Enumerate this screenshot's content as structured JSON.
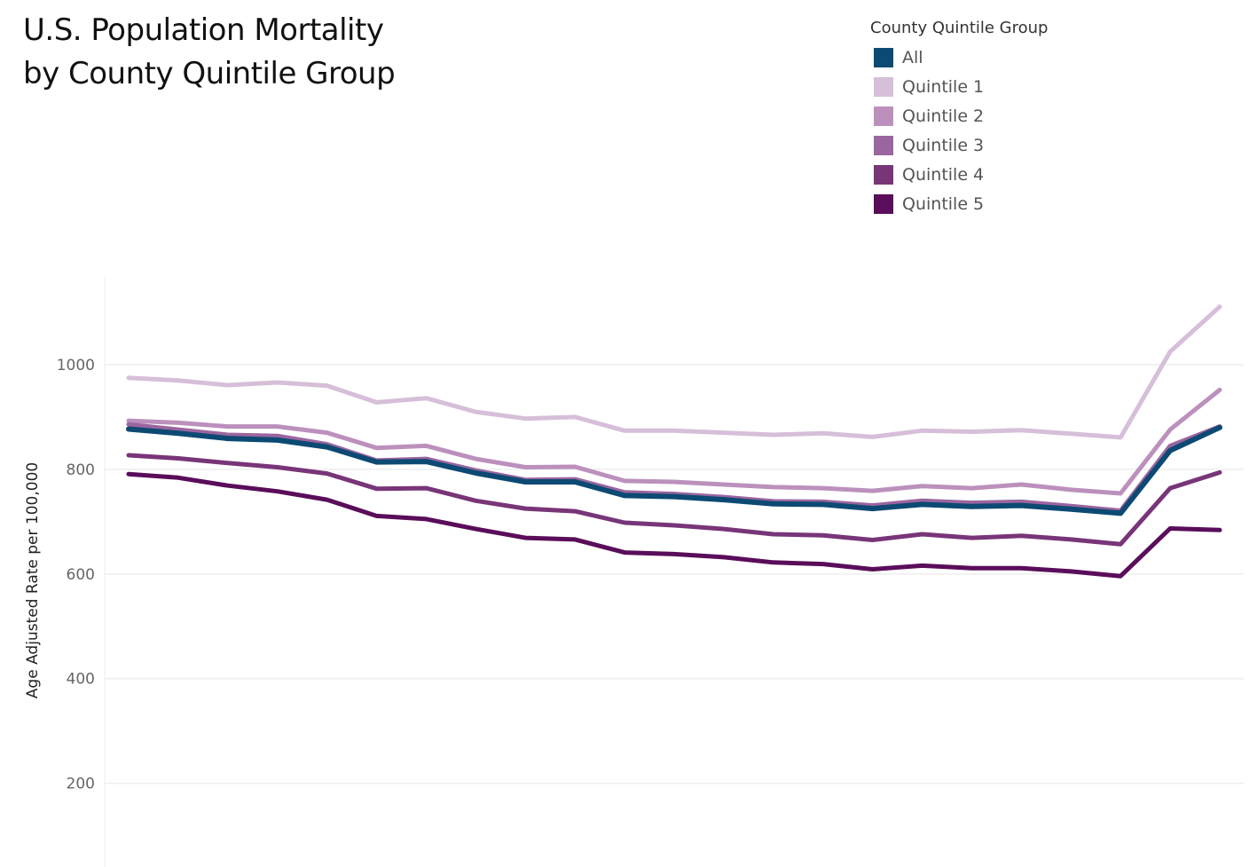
{
  "title_lines": [
    "U.S. Population Mortality",
    "by County Quintile Group"
  ],
  "chart_data": {
    "type": "line",
    "title": "U.S. Population Mortality by County Quintile Group",
    "ylabel": "Age Adjusted Rate per 100,000",
    "xlabel": "",
    "ylim": [
      80,
      1170
    ],
    "yticks": [
      200,
      400,
      600,
      800,
      1000
    ],
    "grid": true,
    "legend": {
      "title": "County Quintile Group",
      "placement": "top-right"
    },
    "x": [
      1,
      2,
      3,
      4,
      5,
      6,
      7,
      8,
      9,
      10,
      11,
      12,
      13,
      14,
      15,
      16,
      17,
      18,
      19,
      20,
      21,
      22,
      23
    ],
    "series": [
      {
        "name": "Quintile 1",
        "color": "#d6bfd9",
        "values": [
          975,
          970,
          961,
          966,
          960,
          928,
          936,
          910,
          897,
          900,
          874,
          874,
          870,
          866,
          869,
          862,
          874,
          872,
          875,
          868,
          861,
          1025,
          1111
        ]
      },
      {
        "name": "Quintile 2",
        "color": "#bc90bd",
        "values": [
          893,
          889,
          882,
          882,
          870,
          841,
          845,
          820,
          804,
          805,
          778,
          776,
          771,
          766,
          764,
          759,
          768,
          764,
          771,
          761,
          754,
          876,
          952
        ]
      },
      {
        "name": "Quintile 3",
        "color": "#9b65a0",
        "values": [
          886,
          876,
          866,
          864,
          848,
          817,
          820,
          798,
          780,
          781,
          756,
          753,
          747,
          739,
          738,
          731,
          740,
          736,
          738,
          730,
          721,
          845,
          882
        ]
      },
      {
        "name": "All",
        "color": "#0c4a73",
        "values": [
          877,
          869,
          859,
          856,
          843,
          814,
          815,
          793,
          776,
          776,
          750,
          748,
          742,
          734,
          733,
          725,
          733,
          729,
          731,
          724,
          716,
          836,
          880
        ]
      },
      {
        "name": "Quintile 4",
        "color": "#783578",
        "values": [
          827,
          821,
          812,
          804,
          792,
          763,
          764,
          740,
          725,
          720,
          698,
          693,
          686,
          676,
          674,
          665,
          676,
          669,
          673,
          666,
          657,
          764,
          794
        ]
      },
      {
        "name": "Quintile 5",
        "color": "#5a0d5a",
        "values": [
          791,
          784,
          769,
          758,
          742,
          711,
          705,
          686,
          669,
          666,
          641,
          638,
          632,
          622,
          619,
          609,
          616,
          611,
          611,
          605,
          596,
          687,
          684
        ]
      }
    ],
    "legend_order": [
      "All",
      "Quintile 1",
      "Quintile 2",
      "Quintile 3",
      "Quintile 4",
      "Quintile 5"
    ]
  }
}
